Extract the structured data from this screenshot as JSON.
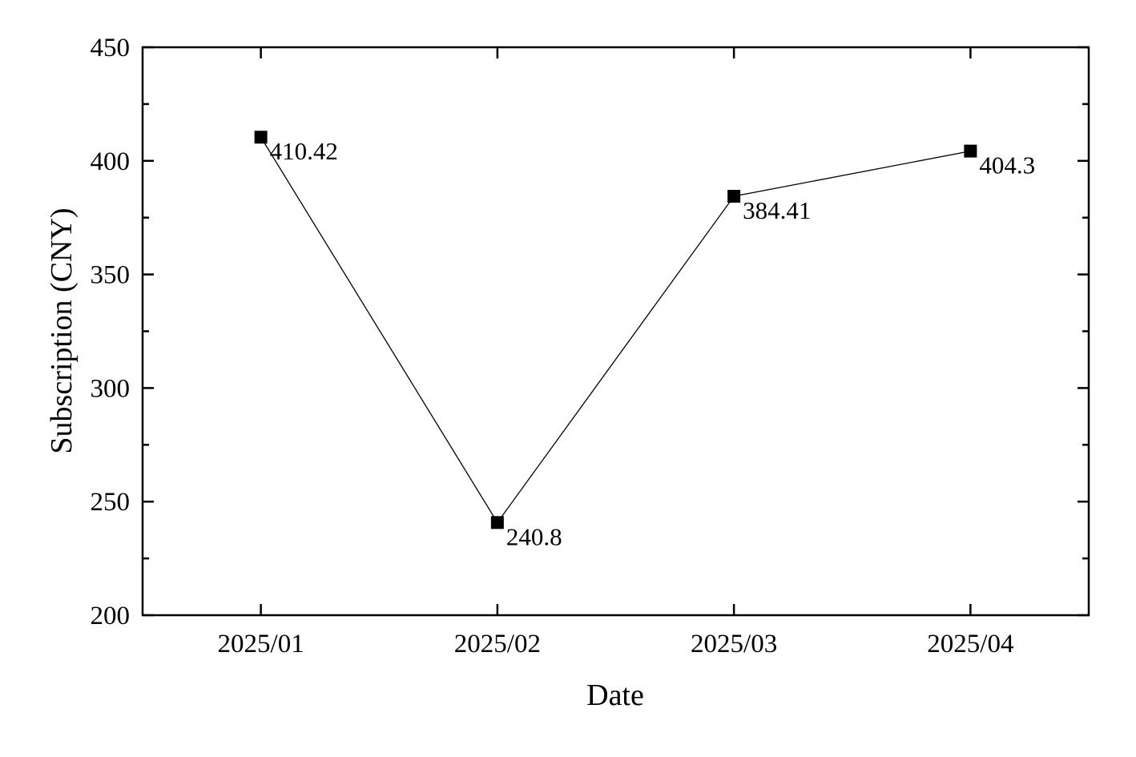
{
  "chart_data": {
    "type": "line",
    "title": "",
    "xlabel": "Date",
    "ylabel": "Subscription (CNY)",
    "categories": [
      "2025/01",
      "2025/02",
      "2025/03",
      "2025/04"
    ],
    "series": [
      {
        "values": [
          410.42,
          240.8,
          384.41,
          404.3
        ],
        "data_labels": [
          "410.42",
          "240.8",
          "384.41",
          "404.3"
        ],
        "marker": "square",
        "color": "#000000"
      }
    ],
    "ylim": [
      200,
      450
    ],
    "yticks": [
      200,
      250,
      300,
      350,
      400,
      450
    ],
    "ytick_labels": [
      "200",
      "250",
      "300",
      "350",
      "400",
      "450"
    ],
    "y_minor_step": 25,
    "grid": false,
    "legend": "none"
  }
}
